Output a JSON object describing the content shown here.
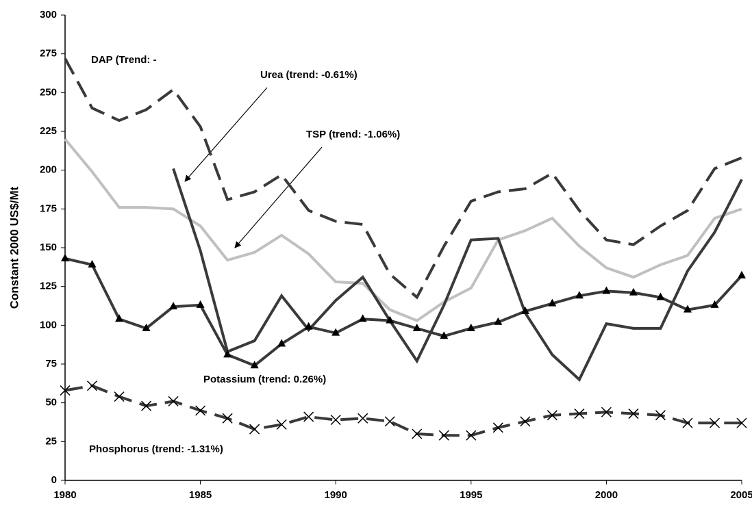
{
  "chart_data": {
    "type": "line",
    "y_label": "Constant 2000 US$/Mt",
    "x": [
      1980,
      1981,
      1982,
      1983,
      1984,
      1985,
      1986,
      1987,
      1988,
      1989,
      1990,
      1991,
      1992,
      1993,
      1994,
      1995,
      1996,
      1997,
      1998,
      1999,
      2000,
      2001,
      2002,
      2003,
      2004,
      2005
    ],
    "xlim": [
      1980,
      2005
    ],
    "xticks": [
      1980,
      1985,
      1990,
      1995,
      2000,
      2005
    ],
    "ylim": [
      0,
      300
    ],
    "yticks": [
      0,
      25,
      50,
      75,
      100,
      125,
      150,
      175,
      200,
      225,
      250,
      275,
      300
    ],
    "grid": false,
    "series": [
      {
        "name": "DAP",
        "color": "#3a3a3a",
        "dash": true,
        "marker": null,
        "values": [
          272,
          240,
          232,
          239,
          252,
          228,
          181,
          186,
          197,
          174,
          167,
          165,
          133,
          118,
          151,
          180,
          186,
          188,
          198,
          174,
          155,
          152,
          164,
          174,
          201,
          208
        ]
      },
      {
        "name": "TSP",
        "color": "#c0c0c0",
        "dash": false,
        "marker": null,
        "values": [
          220,
          199,
          176,
          176,
          175,
          164,
          142,
          147,
          158,
          146,
          128,
          127,
          110,
          103,
          115,
          124,
          155,
          161,
          169,
          151,
          137,
          131,
          139,
          145,
          169,
          175
        ]
      },
      {
        "name": "Urea",
        "color": "#3a3a3a",
        "dash": false,
        "marker": null,
        "values": [
          null,
          null,
          null,
          null,
          201,
          148,
          83,
          90,
          119,
          97,
          116,
          131,
          103,
          77,
          113,
          155,
          156,
          108,
          81,
          65,
          101,
          98,
          98,
          135,
          160,
          194
        ]
      },
      {
        "name": "Potassium",
        "color": "#3a3a3a",
        "dash": false,
        "marker": "triangle",
        "values": [
          143,
          139,
          104,
          98,
          112,
          113,
          81,
          74,
          88,
          99,
          95,
          104,
          103,
          98,
          93,
          98,
          102,
          109,
          114,
          119,
          122,
          121,
          118,
          110,
          113,
          132
        ]
      },
      {
        "name": "Phosphorus",
        "color": "#3a3a3a",
        "dash": true,
        "marker": "x",
        "values": [
          58,
          61,
          54,
          48,
          51,
          45,
          40,
          33,
          36,
          41,
          39,
          40,
          38,
          30,
          29,
          29,
          34,
          38,
          42,
          43,
          44,
          43,
          42,
          37,
          37,
          37
        ]
      }
    ],
    "annotations": [
      "DAP (Trend: -",
      "Urea (trend: -0.61%)",
      "TSP (trend: -1.06%)",
      "Potassium (trend: 0.26%)",
      "Phosphorus (trend: -1.31%)"
    ]
  }
}
